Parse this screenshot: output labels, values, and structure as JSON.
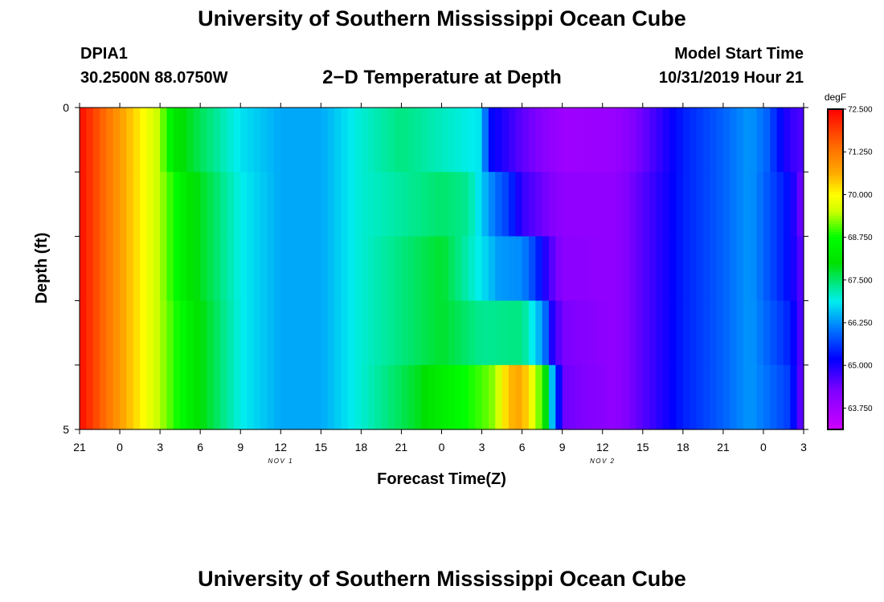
{
  "header": {
    "title": "University of Southern Mississippi Ocean Cube",
    "station_id": "DPIA1",
    "station_coords": "30.2500N 88.0750W",
    "plot_title": "2−D Temperature at Depth",
    "model_label": "Model Start Time",
    "model_time": "10/31/2019 Hour 21"
  },
  "footer": {
    "title": "University of Southern Mississippi Ocean Cube"
  },
  "chart_data": {
    "type": "heatmap",
    "title": "2−D Temperature at Depth",
    "xlabel": "Forecast Time(Z)",
    "ylabel": "Depth (ft)",
    "x_hours": [
      0,
      54
    ],
    "y_range": [
      0,
      5
    ],
    "y_rows": 5,
    "x_ticks": [
      "21",
      "0",
      "3",
      "6",
      "9",
      "12",
      "15",
      "18",
      "21",
      "0",
      "3",
      "6",
      "9",
      "12",
      "15",
      "18",
      "21",
      "0",
      "3"
    ],
    "date_labels": [
      {
        "hour": 15,
        "text": "NOV 1"
      },
      {
        "hour": 39,
        "text": "NOV 2"
      }
    ],
    "y_tick_labels": [
      {
        "depth": 0,
        "text": "0"
      },
      {
        "depth": 5,
        "text": "5"
      }
    ],
    "colorbar": {
      "unit": "degF",
      "min": 63.125,
      "max": 72.5,
      "tick_values": [
        72.5,
        71.25,
        70.0,
        68.75,
        67.5,
        66.25,
        65.0,
        63.75
      ],
      "tick_labels": [
        "72.500",
        "71.250",
        "70.000",
        "68.750",
        "67.500",
        "66.250",
        "65.000",
        "63.750"
      ]
    },
    "series": [
      {
        "name": "0-1 ft",
        "points": [
          [
            0,
            72.4
          ],
          [
            3,
            70.8
          ],
          [
            6,
            69.4
          ],
          [
            7,
            68.2
          ],
          [
            9,
            67.6
          ],
          [
            12,
            66.8
          ],
          [
            15,
            66.4
          ],
          [
            18,
            66.4
          ],
          [
            21,
            67.0
          ],
          [
            24,
            67.4
          ],
          [
            30,
            66.8
          ],
          [
            30.5,
            65.3
          ],
          [
            33,
            64.5
          ],
          [
            36,
            63.8
          ],
          [
            40,
            63.9
          ],
          [
            42,
            64.4
          ],
          [
            45,
            65.4
          ],
          [
            48,
            65.9
          ],
          [
            50,
            66.3
          ],
          [
            51.3,
            65.9
          ],
          [
            52,
            65.4
          ],
          [
            53,
            64.8
          ],
          [
            54,
            64.6
          ]
        ]
      },
      {
        "name": "1-2 ft",
        "points": [
          [
            0,
            72.4
          ],
          [
            3,
            70.8
          ],
          [
            6,
            69.4
          ],
          [
            8,
            68.2
          ],
          [
            12,
            66.9
          ],
          [
            15,
            66.4
          ],
          [
            18,
            66.4
          ],
          [
            21,
            67.0
          ],
          [
            27,
            67.5
          ],
          [
            29,
            67.3
          ],
          [
            31,
            66.0
          ],
          [
            32,
            65.6
          ],
          [
            33,
            64.8
          ],
          [
            36,
            64.0
          ],
          [
            40,
            64.0
          ],
          [
            45,
            65.4
          ],
          [
            48,
            65.9
          ],
          [
            50,
            66.3
          ],
          [
            53,
            65.2
          ],
          [
            54,
            64.2
          ]
        ]
      },
      {
        "name": "2-3 ft",
        "points": [
          [
            0,
            72.4
          ],
          [
            3,
            70.8
          ],
          [
            6,
            69.4
          ],
          [
            8,
            68.2
          ],
          [
            12,
            66.9
          ],
          [
            15,
            66.4
          ],
          [
            18,
            66.4
          ],
          [
            21,
            67.0
          ],
          [
            27,
            67.8
          ],
          [
            30,
            66.8
          ],
          [
            31.3,
            66.3
          ],
          [
            33,
            66.2
          ],
          [
            34,
            65.6
          ],
          [
            35,
            64.7
          ],
          [
            36,
            64.1
          ],
          [
            40,
            64.0
          ],
          [
            45,
            65.4
          ],
          [
            48,
            65.9
          ],
          [
            50,
            66.3
          ],
          [
            53,
            65.2
          ],
          [
            54,
            64.4
          ]
        ]
      },
      {
        "name": "3-4 ft",
        "points": [
          [
            0,
            72.4
          ],
          [
            3,
            70.8
          ],
          [
            6,
            69.4
          ],
          [
            9,
            68.0
          ],
          [
            12,
            66.9
          ],
          [
            15,
            66.4
          ],
          [
            18,
            66.4
          ],
          [
            21,
            67.0
          ],
          [
            27,
            67.8
          ],
          [
            30,
            67.3
          ],
          [
            33,
            67.4
          ],
          [
            34,
            66.7
          ],
          [
            34.7,
            66.1
          ],
          [
            35,
            65.2
          ],
          [
            36,
            64.3
          ],
          [
            40,
            64.0
          ],
          [
            45,
            65.4
          ],
          [
            48,
            65.9
          ],
          [
            50,
            66.3
          ],
          [
            53,
            65.4
          ],
          [
            54,
            64.4
          ]
        ]
      },
      {
        "name": "4-5 ft",
        "points": [
          [
            0,
            72.4
          ],
          [
            3,
            70.8
          ],
          [
            6,
            69.4
          ],
          [
            9,
            68.0
          ],
          [
            12,
            66.9
          ],
          [
            15,
            66.4
          ],
          [
            18,
            66.4
          ],
          [
            21,
            67.0
          ],
          [
            25,
            67.8
          ],
          [
            28,
            68.6
          ],
          [
            30,
            69.0
          ],
          [
            31,
            69.3
          ],
          [
            32,
            70.5
          ],
          [
            33,
            70.7
          ],
          [
            34,
            69.5
          ],
          [
            34.5,
            68.9
          ],
          [
            35,
            67.0
          ],
          [
            35.5,
            66.1
          ],
          [
            36,
            64.4
          ],
          [
            40,
            64.0
          ],
          [
            45,
            65.4
          ],
          [
            48,
            65.9
          ],
          [
            50,
            66.3
          ],
          [
            53,
            65.6
          ],
          [
            54,
            64.2
          ]
        ]
      }
    ]
  }
}
